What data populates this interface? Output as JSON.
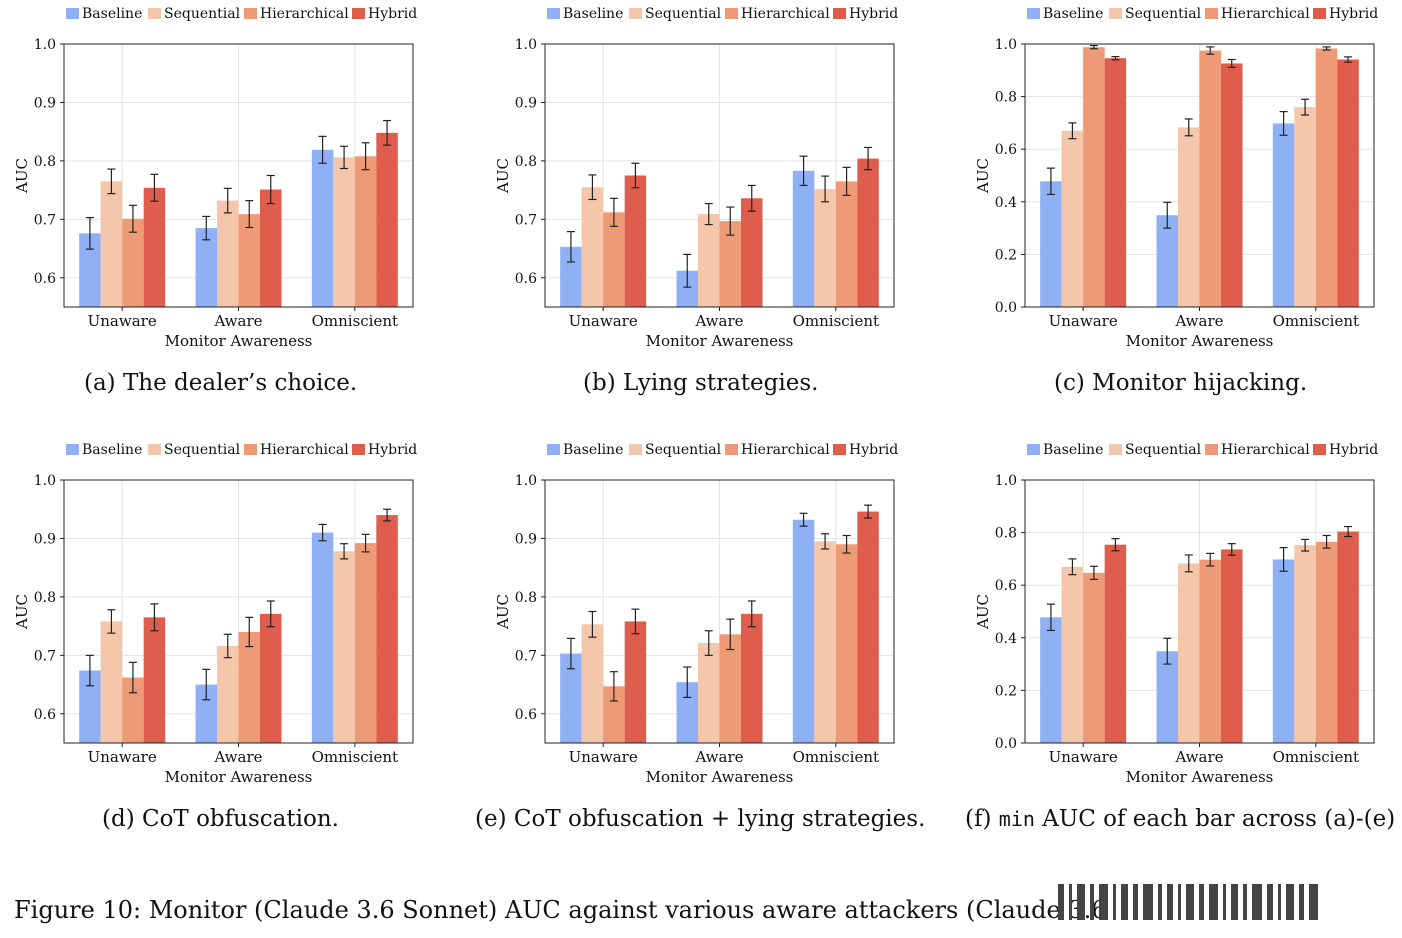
{
  "legend_labels": [
    "Baseline",
    "Sequential",
    "Hierarchical",
    "Hybrid"
  ],
  "colors": [
    "#8fb0f5",
    "#f4c6aa",
    "#ef9a77",
    "#de5d4c"
  ],
  "captions": [
    "(a) The dealer’s choice.",
    "(b) Lying strategies.",
    "(c) Monitor hijacking.",
    "(d) CoT obfuscation.",
    "(e) CoT obfuscation + lying strategies.",
    {
      "pre": "(f) ",
      "mono": "min",
      "post": " AUC of each bar across (a)-(e)"
    }
  ],
  "figure_caption": "Figure 10: Monitor (Claude 3.6 Sonnet) AUC against various aware attackers (Claude 3.6",
  "chart_data": [
    {
      "type": "bar",
      "title": "(a) The dealer’s choice.",
      "xlabel": "Monitor Awareness",
      "ylabel": "AUC",
      "categories": [
        "Unaware",
        "Aware",
        "Omniscient"
      ],
      "ylim": [
        0.55,
        1.0
      ],
      "yticks": [
        "0.6",
        "0.7",
        "0.8",
        "0.9",
        "1.0"
      ],
      "grid": true,
      "legend": "top",
      "series": [
        {
          "name": "Baseline",
          "values": [
            0.676,
            0.685,
            0.819
          ],
          "err": [
            0.027,
            0.02,
            0.023
          ]
        },
        {
          "name": "Sequential",
          "values": [
            0.765,
            0.732,
            0.806
          ],
          "err": [
            0.021,
            0.021,
            0.019
          ]
        },
        {
          "name": "Hierarchical",
          "values": [
            0.701,
            0.709,
            0.808
          ],
          "err": [
            0.023,
            0.023,
            0.023
          ]
        },
        {
          "name": "Hybrid",
          "values": [
            0.754,
            0.751,
            0.848
          ],
          "err": [
            0.023,
            0.024,
            0.021
          ]
        }
      ]
    },
    {
      "type": "bar",
      "title": "(b) Lying strategies.",
      "xlabel": "Monitor Awareness",
      "ylabel": "AUC",
      "categories": [
        "Unaware",
        "Aware",
        "Omniscient"
      ],
      "ylim": [
        0.55,
        1.0
      ],
      "yticks": [
        "0.6",
        "0.7",
        "0.8",
        "0.9",
        "1.0"
      ],
      "grid": true,
      "legend": "top",
      "series": [
        {
          "name": "Baseline",
          "values": [
            0.653,
            0.612,
            0.783
          ],
          "err": [
            0.026,
            0.028,
            0.025
          ]
        },
        {
          "name": "Sequential",
          "values": [
            0.755,
            0.709,
            0.752
          ],
          "err": [
            0.021,
            0.018,
            0.022
          ]
        },
        {
          "name": "Hierarchical",
          "values": [
            0.712,
            0.697,
            0.765
          ],
          "err": [
            0.024,
            0.024,
            0.024
          ]
        },
        {
          "name": "Hybrid",
          "values": [
            0.775,
            0.736,
            0.804
          ],
          "err": [
            0.021,
            0.022,
            0.019
          ]
        }
      ]
    },
    {
      "type": "bar",
      "title": "(c) Monitor hijacking.",
      "xlabel": "Monitor Awareness",
      "ylabel": "AUC",
      "categories": [
        "Unaware",
        "Aware",
        "Omniscient"
      ],
      "ylim": [
        0.0,
        1.0
      ],
      "yticks": [
        "0.0",
        "0.2",
        "0.4",
        "0.6",
        "0.8",
        "1.0"
      ],
      "grid": true,
      "legend": "top",
      "series": [
        {
          "name": "Baseline",
          "values": [
            0.478,
            0.349,
            0.698
          ],
          "err": [
            0.05,
            0.049,
            0.045
          ]
        },
        {
          "name": "Sequential",
          "values": [
            0.67,
            0.683,
            0.76
          ],
          "err": [
            0.03,
            0.032,
            0.03
          ]
        },
        {
          "name": "Hierarchical",
          "values": [
            0.988,
            0.975,
            0.983
          ],
          "err": [
            0.006,
            0.014,
            0.006
          ]
        },
        {
          "name": "Hybrid",
          "values": [
            0.946,
            0.926,
            0.941
          ],
          "err": [
            0.006,
            0.015,
            0.01
          ]
        }
      ]
    },
    {
      "type": "bar",
      "title": "(d) CoT obfuscation.",
      "xlabel": "Monitor Awareness",
      "ylabel": "AUC",
      "categories": [
        "Unaware",
        "Aware",
        "Omniscient"
      ],
      "ylim": [
        0.55,
        1.0
      ],
      "yticks": [
        "0.6",
        "0.7",
        "0.8",
        "0.9",
        "1.0"
      ],
      "grid": true,
      "legend": "top",
      "series": [
        {
          "name": "Baseline",
          "values": [
            0.674,
            0.65,
            0.91
          ],
          "err": [
            0.026,
            0.026,
            0.014
          ]
        },
        {
          "name": "Sequential",
          "values": [
            0.758,
            0.716,
            0.878
          ],
          "err": [
            0.02,
            0.02,
            0.013
          ]
        },
        {
          "name": "Hierarchical",
          "values": [
            0.662,
            0.74,
            0.892
          ],
          "err": [
            0.026,
            0.025,
            0.015
          ]
        },
        {
          "name": "Hybrid",
          "values": [
            0.765,
            0.771,
            0.94
          ],
          "err": [
            0.023,
            0.022,
            0.01
          ]
        }
      ]
    },
    {
      "type": "bar",
      "title": "(e) CoT obfuscation + lying strategies.",
      "xlabel": "Monitor Awareness",
      "ylabel": "AUC",
      "categories": [
        "Unaware",
        "Aware",
        "Omniscient"
      ],
      "ylim": [
        0.55,
        1.0
      ],
      "yticks": [
        "0.6",
        "0.7",
        "0.8",
        "0.9",
        "1.0"
      ],
      "grid": true,
      "legend": "top",
      "series": [
        {
          "name": "Baseline",
          "values": [
            0.703,
            0.654,
            0.932
          ],
          "err": [
            0.026,
            0.026,
            0.011
          ]
        },
        {
          "name": "Sequential",
          "values": [
            0.753,
            0.721,
            0.895
          ],
          "err": [
            0.022,
            0.021,
            0.013
          ]
        },
        {
          "name": "Hierarchical",
          "values": [
            0.647,
            0.736,
            0.89
          ],
          "err": [
            0.025,
            0.026,
            0.015
          ]
        },
        {
          "name": "Hybrid",
          "values": [
            0.758,
            0.771,
            0.946
          ],
          "err": [
            0.021,
            0.022,
            0.011
          ]
        }
      ]
    },
    {
      "type": "bar",
      "title": "(f) min AUC of each bar across (a)-(e)",
      "xlabel": "Monitor Awareness",
      "ylabel": "AUC",
      "categories": [
        "Unaware",
        "Aware",
        "Omniscient"
      ],
      "ylim": [
        0.0,
        1.0
      ],
      "yticks": [
        "0.0",
        "0.2",
        "0.4",
        "0.6",
        "0.8",
        "1.0"
      ],
      "grid": true,
      "legend": "top",
      "series": [
        {
          "name": "Baseline",
          "values": [
            0.478,
            0.349,
            0.698
          ],
          "err": [
            0.05,
            0.049,
            0.045
          ]
        },
        {
          "name": "Sequential",
          "values": [
            0.67,
            0.683,
            0.752
          ],
          "err": [
            0.03,
            0.032,
            0.022
          ]
        },
        {
          "name": "Hierarchical",
          "values": [
            0.647,
            0.697,
            0.765
          ],
          "err": [
            0.025,
            0.024,
            0.024
          ]
        },
        {
          "name": "Hybrid",
          "values": [
            0.754,
            0.736,
            0.804
          ],
          "err": [
            0.023,
            0.022,
            0.019
          ]
        }
      ]
    }
  ]
}
